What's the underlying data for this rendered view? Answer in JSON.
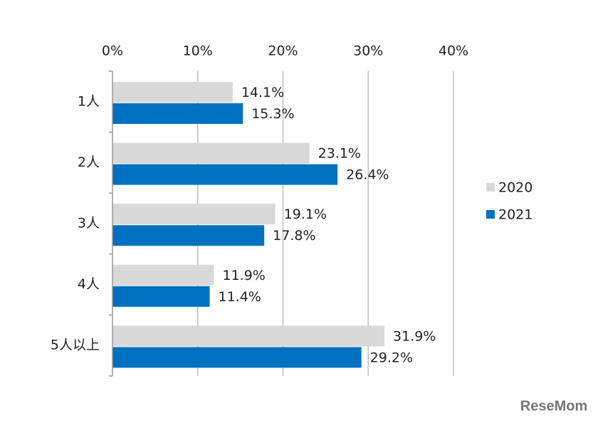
{
  "chart_data": {
    "type": "bar",
    "orientation": "horizontal",
    "categories": [
      "1人",
      "2人",
      "3人",
      "4人",
      "5人以上"
    ],
    "series": [
      {
        "name": "2020",
        "color": "#d9d9d9",
        "values": [
          14.1,
          23.1,
          19.1,
          11.9,
          31.9
        ],
        "value_labels": [
          "14.1%",
          "23.1%",
          "19.1%",
          "11.9%",
          "31.9%"
        ]
      },
      {
        "name": "2021",
        "color": "#0070c0",
        "values": [
          15.3,
          26.4,
          17.8,
          11.4,
          29.2
        ],
        "value_labels": [
          "15.3%",
          "26.4%",
          "17.8%",
          "11.4%",
          "29.2%"
        ]
      }
    ],
    "xlim": [
      0,
      40
    ],
    "xticks": [
      {
        "value": 0,
        "label": "0%"
      },
      {
        "value": 10,
        "label": "10%"
      },
      {
        "value": 20,
        "label": "20%"
      },
      {
        "value": 30,
        "label": "30%"
      },
      {
        "value": 40,
        "label": "40%"
      }
    ],
    "grid": true,
    "legend": "right",
    "watermark": "ReseMom"
  }
}
